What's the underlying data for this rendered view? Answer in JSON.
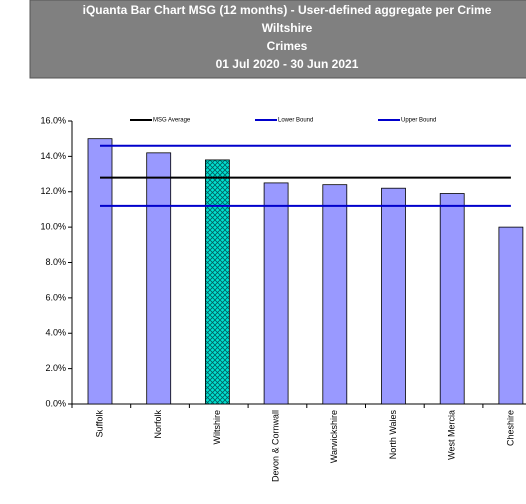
{
  "chart_data": {
    "type": "bar",
    "title": "iQuanta Bar Chart MSG (12 months) - User-defined aggregate per Crime",
    "subtitle": [
      "Wiltshire",
      "Crimes",
      "01 Jul 2020 - 30 Jun 2021"
    ],
    "categories": [
      "Suffolk",
      "Norfolk",
      "Wiltshire",
      "Devon & Cornwall",
      "Warwickshire",
      "North Wales",
      "West Mercia",
      "Cheshire"
    ],
    "values": [
      15.0,
      14.2,
      13.8,
      12.5,
      12.4,
      12.2,
      11.9,
      10.0
    ],
    "color": "#9999ff",
    "highlight": {
      "index": 2,
      "color": "#00e0d0",
      "pattern": "crosshatch"
    },
    "reference_lines": [
      {
        "name": "MSG Average",
        "value": 12.8,
        "color": "#000000"
      },
      {
        "name": "Lower Bound",
        "value": 11.2,
        "color": "#0000cc"
      },
      {
        "name": "Upper Bound",
        "value": 14.6,
        "color": "#0000cc"
      }
    ],
    "ylim": [
      0,
      16
    ],
    "yticks": [
      {
        "value": 0,
        "label": "0.0%"
      },
      {
        "value": 2,
        "label": "2.0%"
      },
      {
        "value": 4,
        "label": "4.0%"
      },
      {
        "value": 6,
        "label": "6.0%"
      },
      {
        "value": 8,
        "label": "8.0%"
      },
      {
        "value": 10,
        "label": "10.0%"
      },
      {
        "value": 12,
        "label": "12.0%"
      },
      {
        "value": 14,
        "label": "14.0%"
      },
      {
        "value": 16,
        "label": "16.0%"
      }
    ],
    "grid": false
  }
}
